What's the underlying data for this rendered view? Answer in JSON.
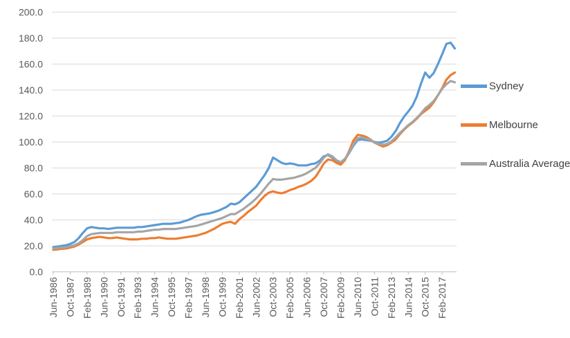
{
  "chart_data": {
    "type": "line",
    "title": "",
    "xlabel": "",
    "ylabel": "",
    "ylim": [
      0,
      200
    ],
    "y_tick_step": 20,
    "y_tick_labels": [
      "0.0",
      "20.0",
      "40.0",
      "60.0",
      "80.0",
      "100.0",
      "120.0",
      "140.0",
      "160.0",
      "180.0",
      "200.0"
    ],
    "x_tick_labels": [
      "Jun-1986",
      "Oct-1987",
      "Feb-1989",
      "Jun-1990",
      "Oct-1991",
      "Feb-1993",
      "Jun-1994",
      "Oct-1995",
      "Feb-1997",
      "Jun-1998",
      "Oct-1999",
      "Feb-2001",
      "Jun-2002",
      "Oct-2003",
      "Feb-2005",
      "Jun-2006",
      "Oct-2007",
      "Feb-2009",
      "Jun-2010",
      "Oct-2011",
      "Feb-2013",
      "Jun-2014",
      "Oct-2015",
      "Feb-2017"
    ],
    "grid": "horizontal",
    "legend_position": "right",
    "categories": [
      "Jun-1986",
      "Oct-1986",
      "Feb-1987",
      "Jun-1987",
      "Oct-1987",
      "Feb-1988",
      "Jun-1988",
      "Oct-1988",
      "Feb-1989",
      "Jun-1989",
      "Oct-1989",
      "Feb-1990",
      "Jun-1990",
      "Oct-1990",
      "Feb-1991",
      "Jun-1991",
      "Oct-1991",
      "Feb-1992",
      "Jun-1992",
      "Oct-1992",
      "Feb-1993",
      "Jun-1993",
      "Oct-1993",
      "Feb-1994",
      "Jun-1994",
      "Oct-1994",
      "Feb-1995",
      "Jun-1995",
      "Oct-1995",
      "Feb-1996",
      "Jun-1996",
      "Oct-1996",
      "Feb-1997",
      "Jun-1997",
      "Oct-1997",
      "Feb-1998",
      "Jun-1998",
      "Oct-1998",
      "Feb-1999",
      "Jun-1999",
      "Oct-1999",
      "Feb-2000",
      "Jun-2000",
      "Oct-2000",
      "Feb-2001",
      "Jun-2001",
      "Oct-2001",
      "Feb-2002",
      "Jun-2002",
      "Oct-2002",
      "Feb-2003",
      "Jun-2003",
      "Oct-2003",
      "Feb-2004",
      "Jun-2004",
      "Oct-2004",
      "Feb-2005",
      "Jun-2005",
      "Oct-2005",
      "Feb-2006",
      "Jun-2006",
      "Oct-2006",
      "Feb-2007",
      "Jun-2007",
      "Oct-2007",
      "Feb-2008",
      "Jun-2008",
      "Oct-2008",
      "Feb-2009",
      "Jun-2009",
      "Oct-2009",
      "Feb-2010",
      "Jun-2010",
      "Oct-2010",
      "Feb-2011",
      "Jun-2011",
      "Oct-2011",
      "Feb-2012",
      "Jun-2012",
      "Oct-2012",
      "Feb-2013",
      "Jun-2013",
      "Oct-2013",
      "Feb-2014",
      "Jun-2014",
      "Oct-2014",
      "Feb-2015",
      "Jun-2015",
      "Oct-2015",
      "Feb-2016",
      "Jun-2016",
      "Oct-2016",
      "Feb-2017",
      "Jun-2017",
      "Oct-2017",
      "Feb-2018"
    ],
    "series": [
      {
        "name": "Sydney",
        "color": "#5B9BD5",
        "values": [
          19,
          19.5,
          20,
          20.5,
          21.5,
          23,
          26,
          30,
          33.5,
          34.5,
          34,
          33.5,
          33.5,
          33,
          33.5,
          34,
          34,
          34,
          34,
          34,
          34.5,
          34.5,
          35,
          35.5,
          36,
          36.5,
          37,
          37,
          37,
          37.5,
          38,
          39,
          40,
          41.5,
          43,
          44,
          44.5,
          45,
          46,
          47,
          48.5,
          50,
          52.5,
          52,
          53.5,
          56.5,
          59.5,
          62.5,
          65.5,
          70,
          74.5,
          80,
          88,
          86,
          84,
          83,
          83.5,
          83,
          82,
          82,
          82,
          83,
          83.5,
          85.5,
          89,
          90,
          88,
          85.5,
          84,
          86.5,
          91.5,
          97,
          101.5,
          102,
          101.5,
          101,
          100,
          99.5,
          100,
          101,
          104,
          108.5,
          114.5,
          119.5,
          123.5,
          128,
          135,
          145,
          153.5,
          149.5,
          153,
          160,
          167.5,
          175.5,
          176.5,
          172
        ]
      },
      {
        "name": "Melbourne",
        "color": "#ED7D31",
        "values": [
          17,
          17.3,
          17.7,
          18,
          18.7,
          19.5,
          21,
          23,
          25,
          26,
          26.5,
          27,
          26.5,
          26,
          26,
          26.5,
          26,
          25.5,
          25,
          25,
          25,
          25.5,
          25.5,
          26,
          26,
          26.5,
          26,
          25.5,
          25.5,
          25.5,
          26,
          26.5,
          27,
          27.5,
          28,
          29,
          30,
          31.5,
          33,
          35,
          37,
          38,
          38.5,
          37,
          40.5,
          43,
          46,
          48.5,
          51,
          55,
          58.5,
          61,
          62,
          61,
          60.5,
          61.5,
          63,
          64,
          65.5,
          66.5,
          68,
          70,
          73,
          78,
          83.5,
          86.5,
          86,
          84,
          82.5,
          86,
          93,
          101,
          105.5,
          105,
          104,
          102,
          99.5,
          98,
          96.5,
          97.5,
          99.5,
          102,
          106,
          109.5,
          112.5,
          115,
          118,
          121.5,
          124,
          126.5,
          130.5,
          136,
          141.5,
          148,
          151.5,
          153.5
        ]
      },
      {
        "name": "Australia Average",
        "color": "#A5A5A5",
        "values": [
          18,
          18.3,
          18.7,
          19,
          19.7,
          20.5,
          22,
          24.5,
          27.5,
          29,
          29.5,
          30,
          30,
          30,
          30,
          30.5,
          30.5,
          30.5,
          30.5,
          30.5,
          31,
          31,
          31.5,
          32,
          32.5,
          32.5,
          33,
          33,
          33,
          33,
          33.5,
          34,
          34.5,
          35,
          35.5,
          36.5,
          37.5,
          38.5,
          39.5,
          40.5,
          41.5,
          43,
          44.5,
          44.5,
          46.5,
          48.5,
          51,
          53.5,
          56.5,
          60,
          64,
          68,
          71.5,
          71,
          71,
          71.5,
          72,
          72.5,
          73.5,
          74.5,
          76,
          78,
          80,
          83.5,
          88,
          90.5,
          89,
          86,
          84.5,
          87,
          92,
          98,
          103,
          103.5,
          102.5,
          101.5,
          99.5,
          98.5,
          98,
          98.5,
          100.5,
          103.5,
          107,
          110,
          113,
          115.5,
          118.5,
          122,
          126,
          128.5,
          131.5,
          136,
          141,
          144.5,
          147,
          146
        ]
      }
    ]
  },
  "legend": {
    "items": [
      {
        "label": "Sydney"
      },
      {
        "label": "Melbourne"
      },
      {
        "label": "Australia Average"
      }
    ]
  },
  "colors": {
    "background": "#FFFFFF",
    "gridline": "#D9D9D9",
    "axis_line": "#BFBFBF",
    "tick_text": "#595959",
    "legend_text": "#404040"
  }
}
